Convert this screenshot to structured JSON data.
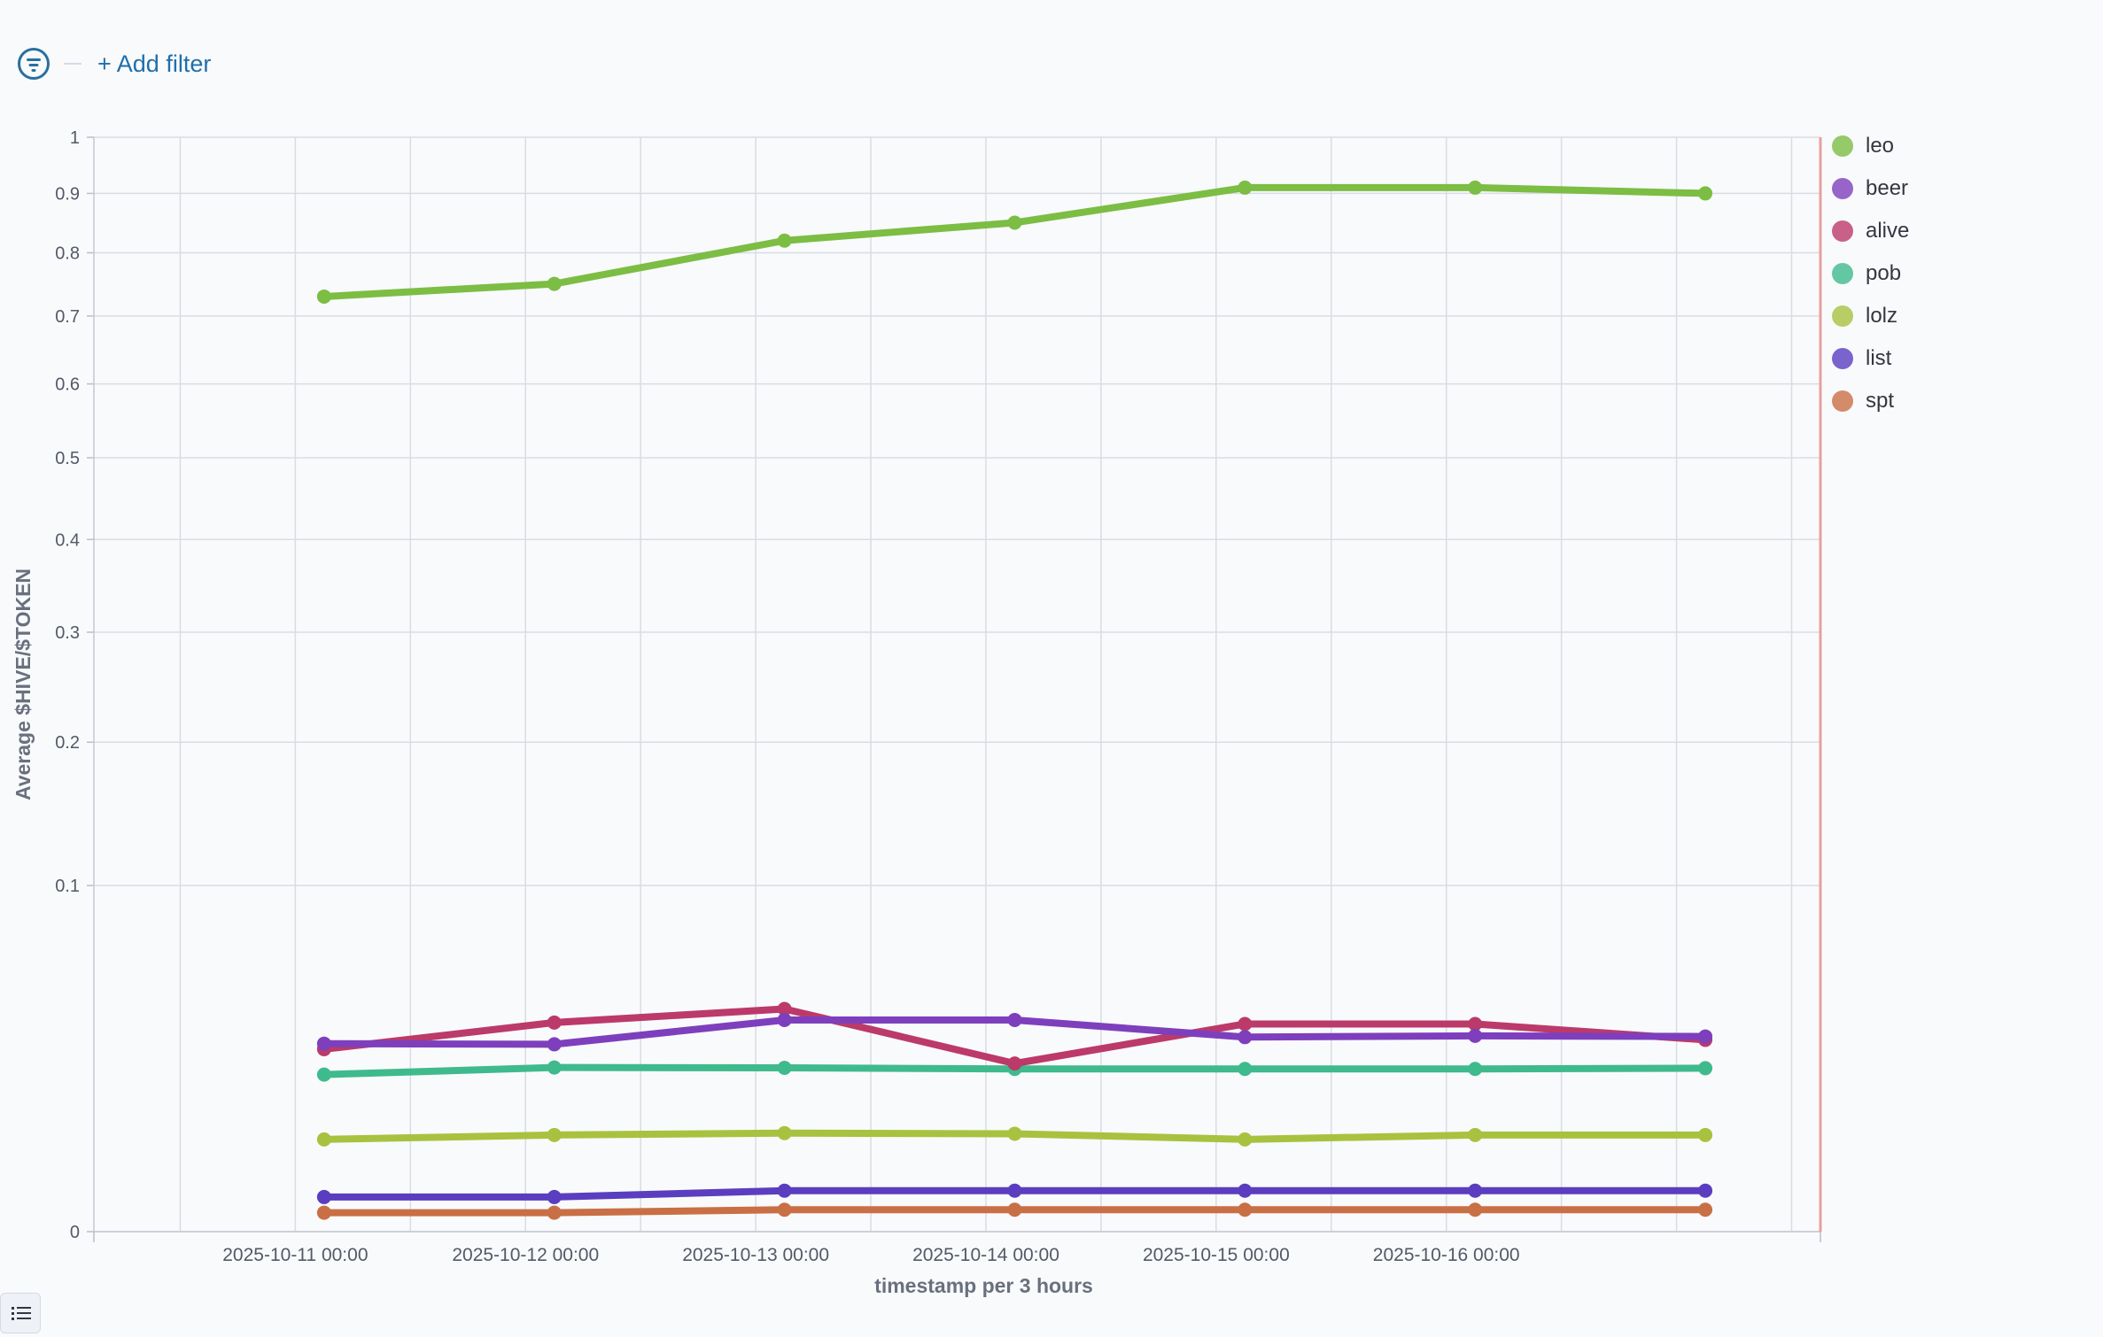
{
  "filter_bar": {
    "add_filter_label": "+ Add filter"
  },
  "colors": {
    "leo": "#7cbd44",
    "beer": "#7e3fbd",
    "alive": "#bb3a6a",
    "pob": "#3fba8c",
    "lolz": "#a8c23f",
    "list": "#5b3dc0",
    "spt": "#c96f45",
    "marker_line": "#e8a0a0"
  },
  "chart_data": {
    "type": "line",
    "xlabel": "timestamp per 3 hours",
    "ylabel": "Average $HIVE/$TOKEN",
    "y_scale": "sqrt",
    "ylim": [
      0,
      1
    ],
    "y_ticks": [
      "0",
      "0.1",
      "0.2",
      "0.3",
      "0.4",
      "0.5",
      "0.6",
      "0.7",
      "0.8",
      "0.9",
      "1"
    ],
    "x_tick_labels": [
      "2025-10-11 00:00",
      "2025-10-12 00:00",
      "2025-10-13 00:00",
      "2025-10-14 00:00",
      "2025-10-15 00:00",
      "2025-10-16 00:00"
    ],
    "x": [
      "2025-10-11 03:00",
      "2025-10-12 03:00",
      "2025-10-13 03:00",
      "2025-10-14 03:00",
      "2025-10-15 03:00",
      "2025-10-16 03:00",
      "2025-10-17 03:00"
    ],
    "series": [
      {
        "name": "leo",
        "values": [
          0.73,
          0.75,
          0.82,
          0.85,
          0.91,
          0.91,
          0.9
        ]
      },
      {
        "name": "beer",
        "values": [
          0.0295,
          0.0293,
          0.0374,
          0.0374,
          0.0316,
          0.032,
          0.0318
        ]
      },
      {
        "name": "alive",
        "values": [
          0.0278,
          0.0365,
          0.0414,
          0.0236,
          0.036,
          0.036,
          0.0307
        ]
      },
      {
        "name": "pob",
        "values": [
          0.0206,
          0.0225,
          0.0224,
          0.0221,
          0.0221,
          0.0221,
          0.0223
        ]
      },
      {
        "name": "lolz",
        "values": [
          0.0071,
          0.0078,
          0.0081,
          0.008,
          0.0071,
          0.0078,
          0.0078
        ]
      },
      {
        "name": "list",
        "values": [
          0.001,
          0.001,
          0.0014,
          0.0014,
          0.0014,
          0.0014,
          0.0014
        ]
      },
      {
        "name": "spt",
        "values": [
          0.0003,
          0.0003,
          0.0004,
          0.0004,
          0.0004,
          0.0004,
          0.0004
        ]
      }
    ]
  }
}
